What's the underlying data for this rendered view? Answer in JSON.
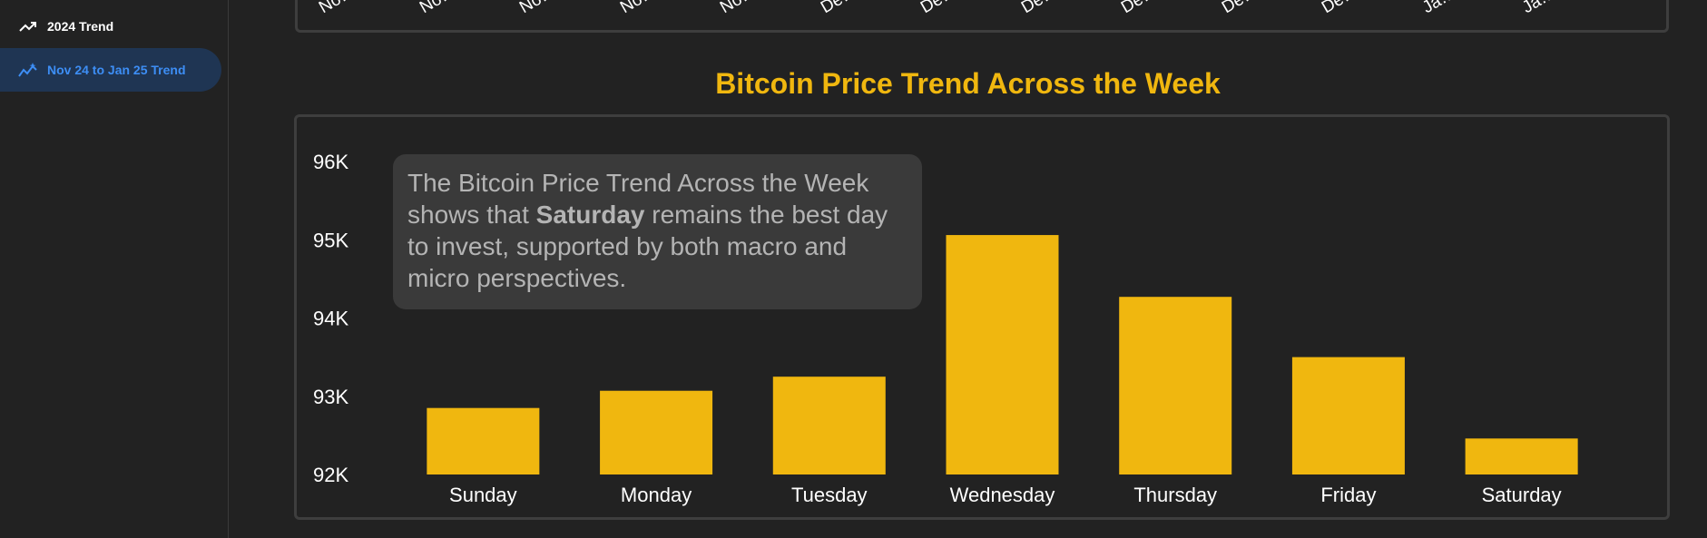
{
  "sidebar": {
    "items": [
      {
        "label": "2024 Trend",
        "icon": "trending-up-icon",
        "active": false
      },
      {
        "label": "Nov 24 to Jan 25 Trend",
        "icon": "trend-sparkle-icon",
        "active": true
      }
    ]
  },
  "top_chart": {
    "tick_labels": [
      "No…",
      "No…",
      "No…",
      "No…",
      "No…",
      "De…",
      "De…",
      "De…",
      "De…",
      "De…",
      "De…",
      "Ja…",
      "Ja…"
    ]
  },
  "weekday_chart": {
    "title": "Bitcoin Price Trend Across the Week",
    "tooltip": {
      "before": "The Bitcoin Price Trend Across the Week shows that ",
      "emphasis": "Saturday",
      "after": " remains the best day to invest, supported by both macro and micro perspectives."
    }
  },
  "colors": {
    "accent": "#f0b70f",
    "background": "#222222",
    "panel_border": "#3e3e3e",
    "active_nav_bg": "#1f3553",
    "active_nav_text": "#3d8ef5"
  },
  "chart_data": {
    "type": "bar",
    "title": "Bitcoin Price Trend Across the Week",
    "categories": [
      "Sunday",
      "Monday",
      "Tuesday",
      "Wednesday",
      "Thursday",
      "Friday",
      "Saturday"
    ],
    "values": [
      92850,
      93070,
      93250,
      95060,
      94270,
      93500,
      92460
    ],
    "yticks": [
      "92K",
      "93K",
      "94K",
      "95K",
      "96K"
    ],
    "ytick_values": [
      92000,
      93000,
      94000,
      95000,
      96000
    ],
    "ylim": [
      92000,
      96000
    ],
    "xlabel": "",
    "ylabel": "",
    "grid": false,
    "legend": "none"
  }
}
